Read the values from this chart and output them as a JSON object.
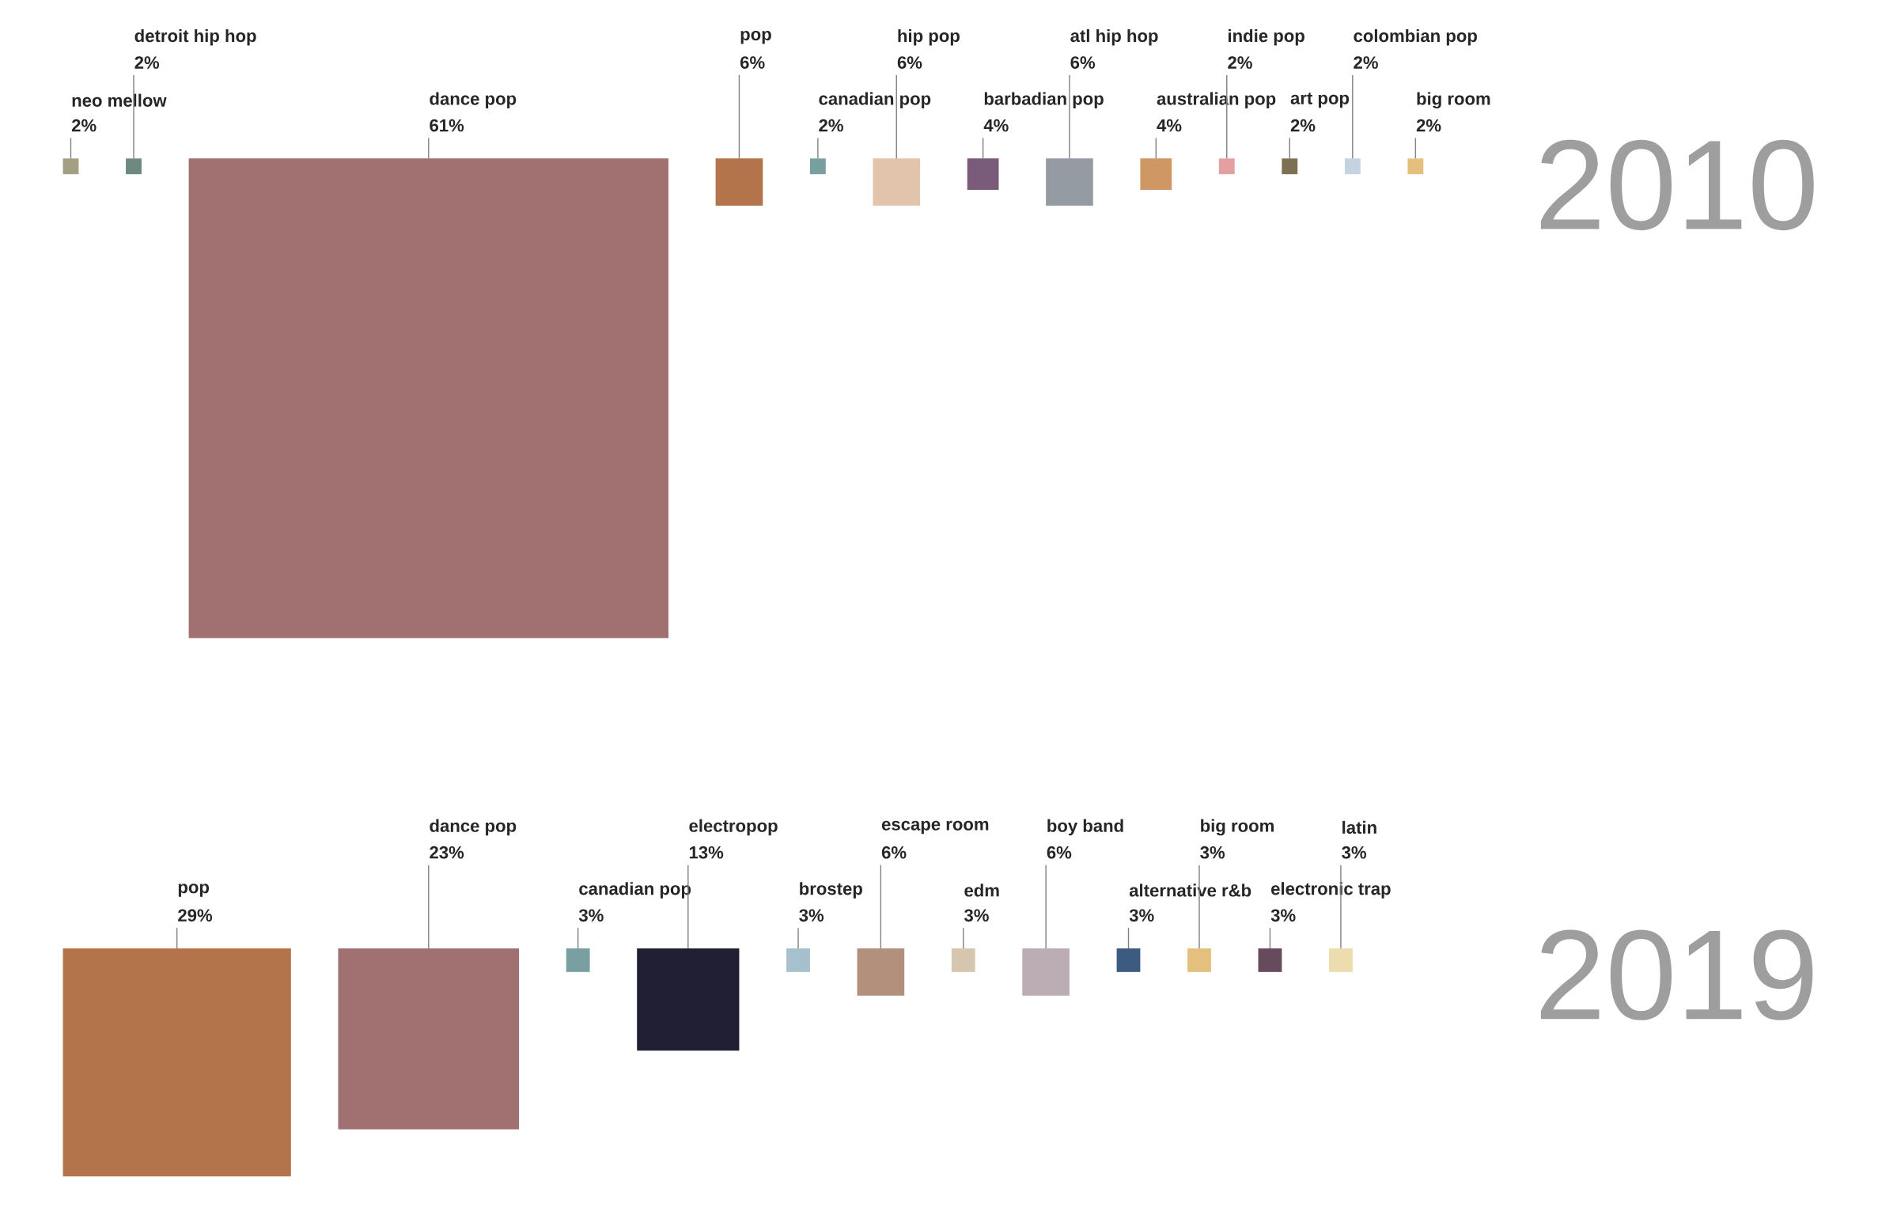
{
  "chart_data": [
    {
      "type": "other",
      "title": "2010",
      "categories": [
        "neo mellow",
        "detroit hip hop",
        "dance pop",
        "pop",
        "canadian pop",
        "hip pop",
        "barbadian pop",
        "atl hip hop",
        "australian pop",
        "indie pop",
        "art pop",
        "colombian pop",
        "big room"
      ],
      "values": [
        2,
        2,
        61,
        6,
        2,
        6,
        4,
        6,
        4,
        2,
        2,
        2,
        2
      ],
      "value_labels": [
        "2%",
        "2%",
        "61%",
        "6%",
        "2%",
        "6%",
        "4%",
        "6%",
        "4%",
        "2%",
        "2%",
        "2%",
        "2%"
      ],
      "colors": [
        "#a39f83",
        "#6e8a80",
        "#a17070",
        "#b3744c",
        "#7a9fa0",
        "#e2c4ac",
        "#7a5b7a",
        "#959ba3",
        "#cf9763",
        "#e4a0a0",
        "#7e7052",
        "#c5d3e0",
        "#e4bf7d"
      ]
    },
    {
      "type": "other",
      "title": "2019",
      "categories": [
        "pop",
        "dance pop",
        "canadian pop",
        "electropop",
        "brostep",
        "escape room",
        "edm",
        "boy band",
        "alternative r&b",
        "big room",
        "electronic trap",
        "latin"
      ],
      "values": [
        29,
        23,
        3,
        13,
        3,
        6,
        3,
        6,
        3,
        3,
        3,
        3
      ],
      "value_labels": [
        "29%",
        "23%",
        "3%",
        "13%",
        "3%",
        "6%",
        "3%",
        "6%",
        "3%",
        "3%",
        "3%",
        "3%"
      ],
      "colors": [
        "#b3744c",
        "#a17070",
        "#7a9fa0",
        "#201f33",
        "#a6c1cd",
        "#b3907c",
        "#d6c6b0",
        "#bcacb4",
        "#3d5a80",
        "#e4bf7d",
        "#654b5c",
        "#ecdcae"
      ]
    }
  ]
}
